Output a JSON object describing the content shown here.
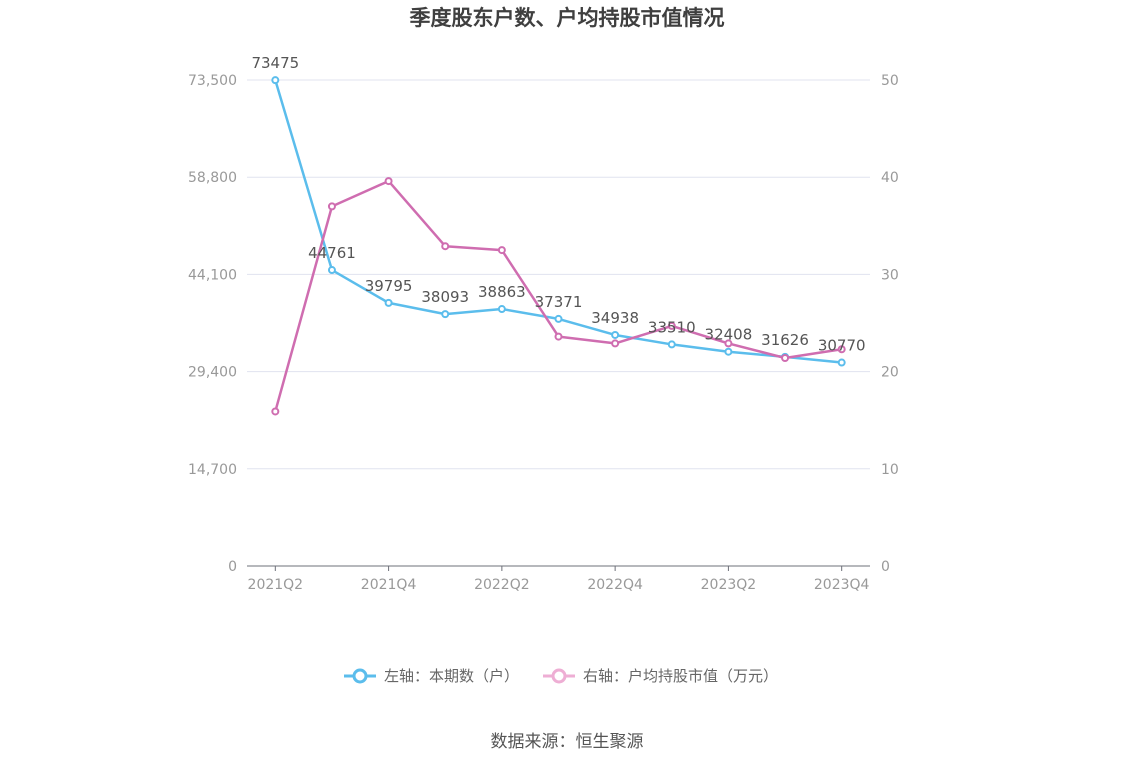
{
  "chart_data": {
    "type": "line",
    "title": "季度股东户数、户均持股市值情况",
    "categories": [
      "2021Q2",
      "2021Q3",
      "2021Q4",
      "2022Q1",
      "2022Q2",
      "2022Q3",
      "2022Q4",
      "2023Q1",
      "2023Q2",
      "2023Q3",
      "2023Q4"
    ],
    "x_tick_labels": [
      "2021Q2",
      "2021Q4",
      "2022Q2",
      "2022Q4",
      "2023Q2",
      "2023Q4"
    ],
    "left_axis": {
      "ticks": [
        "0",
        "14,700",
        "29,400",
        "44,100",
        "58,800",
        "73,500"
      ],
      "ylim": [
        0,
        73500
      ]
    },
    "right_axis": {
      "ticks": [
        "0",
        "10",
        "20",
        "30",
        "40",
        "50"
      ],
      "ylim": [
        0,
        50
      ]
    },
    "series": [
      {
        "name": "左轴：本期数（户）",
        "axis": "left",
        "color": "#5bbdec",
        "values": [
          73475,
          44761,
          39795,
          38093,
          38863,
          37371,
          34938,
          33510,
          32408,
          31626,
          30770
        ],
        "labels": [
          "73475",
          "44761",
          "39795",
          "38093",
          "38863",
          "37371",
          "34938",
          "33510",
          "32408",
          "31626",
          "30770"
        ]
      },
      {
        "name": "右轴：户均持股市值（万元）",
        "axis": "right",
        "color": "#cf6db0",
        "legend_color": "#eeaed4",
        "values": [
          15.9,
          37.0,
          39.6,
          32.9,
          32.5,
          23.6,
          22.9,
          24.7,
          22.9,
          21.4,
          22.3
        ]
      }
    ],
    "grid": true,
    "legend_position": "bottom"
  },
  "source": "数据来源：恒生聚源"
}
